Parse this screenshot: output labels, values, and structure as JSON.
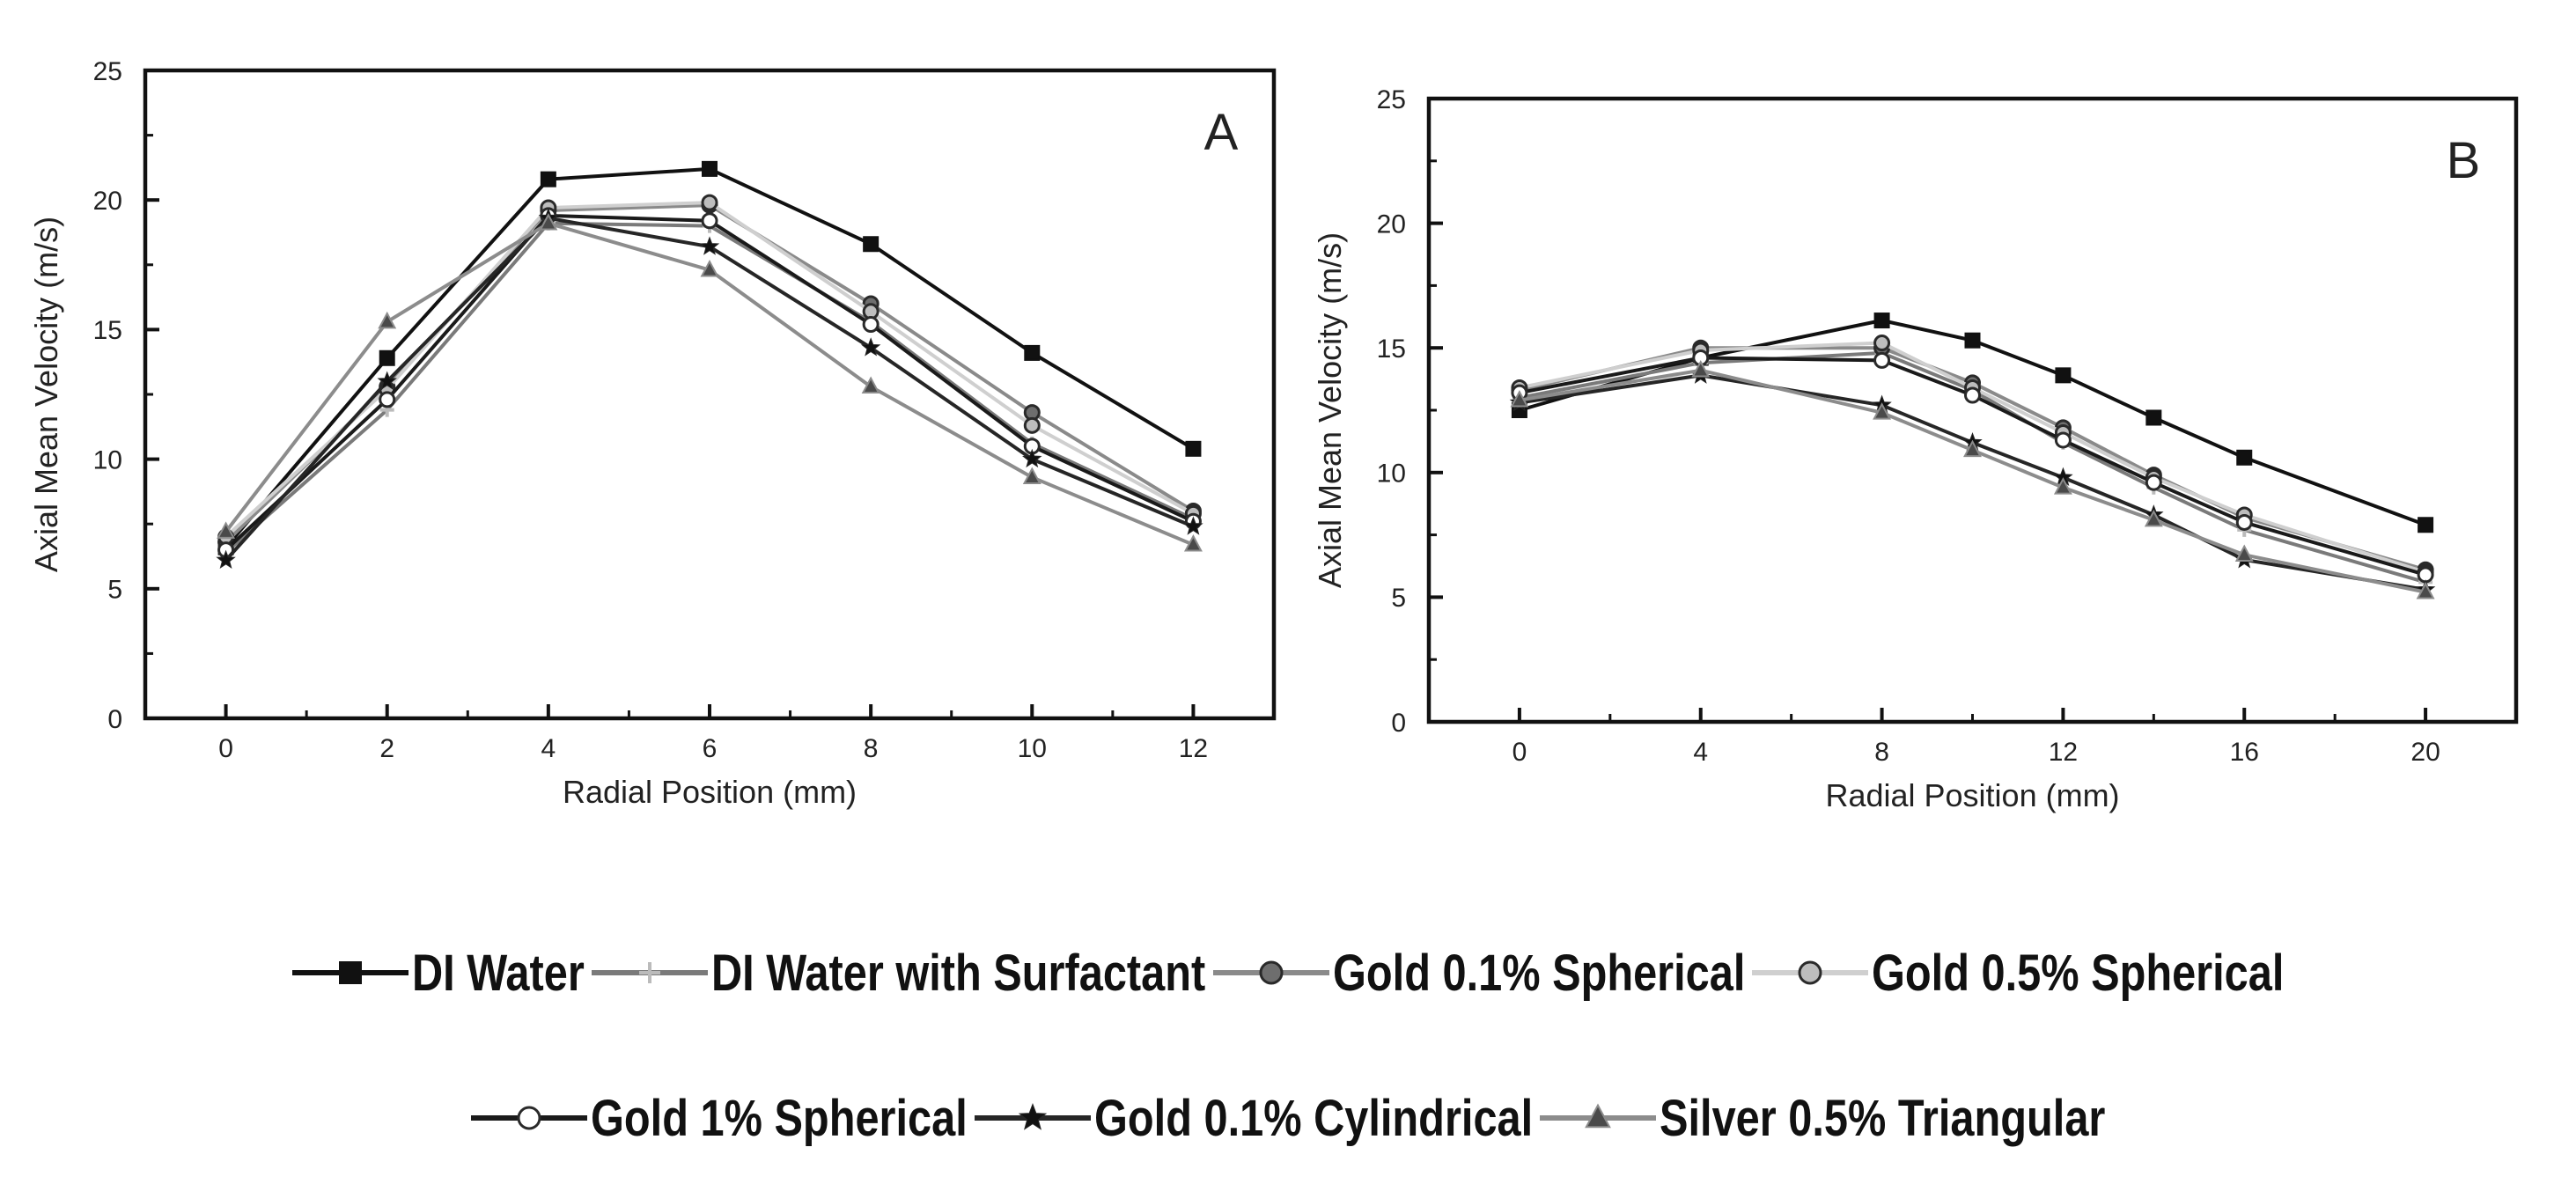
{
  "chart_data": [
    {
      "type": "line",
      "panel_label": "A",
      "xlabel": "Radial Position (mm)",
      "ylabel": "Axial Mean Velocity (m/s)",
      "xlim": [
        -1,
        13
      ],
      "ylim": [
        0,
        25
      ],
      "xticks": [
        0,
        2,
        4,
        6,
        8,
        10,
        12
      ],
      "yticks": [
        0,
        5,
        10,
        15,
        20,
        25
      ],
      "x": [
        0,
        2,
        4,
        6,
        8,
        10,
        12
      ],
      "series": [
        {
          "name": "DI Water",
          "values": [
            6.6,
            13.9,
            20.8,
            21.2,
            18.3,
            14.1,
            10.4
          ]
        },
        {
          "name": "DI Water with Surfactant",
          "values": [
            6.4,
            11.9,
            19.1,
            19.0,
            15.3,
            10.6,
            7.7
          ]
        },
        {
          "name": "Gold 0.1% Spherical",
          "values": [
            6.8,
            12.8,
            19.6,
            19.8,
            16.0,
            11.8,
            8.0
          ]
        },
        {
          "name": "Gold 0.5% Spherical",
          "values": [
            7.0,
            12.7,
            19.7,
            19.9,
            15.7,
            11.3,
            7.9
          ]
        },
        {
          "name": "Gold 1% Spherical",
          "values": [
            6.5,
            12.3,
            19.4,
            19.2,
            15.2,
            10.5,
            7.6
          ]
        },
        {
          "name": "Gold 0.1% Cylindrical",
          "values": [
            6.1,
            13.0,
            19.3,
            18.2,
            14.3,
            10.0,
            7.4
          ]
        },
        {
          "name": "Silver 0.5% Triangular",
          "values": [
            7.2,
            15.3,
            19.1,
            17.3,
            12.8,
            9.3,
            6.7
          ]
        }
      ]
    },
    {
      "type": "line",
      "panel_label": "B",
      "xlabel": "Radial Position (mm)",
      "ylabel": "Axial Mean Velocity (m/s)",
      "xlim": [
        -2,
        22
      ],
      "ylim": [
        0,
        25
      ],
      "xticks": [
        0,
        4,
        8,
        12,
        16,
        20
      ],
      "yticks": [
        0,
        5,
        10,
        15,
        20,
        25
      ],
      "x": [
        0,
        4,
        8,
        10,
        12,
        14,
        16,
        20
      ],
      "series": [
        {
          "name": "DI Water",
          "values": [
            12.5,
            14.6,
            16.1,
            15.3,
            13.9,
            12.2,
            10.6,
            7.9
          ]
        },
        {
          "name": "DI Water with Surfactant",
          "values": [
            13.0,
            14.4,
            14.8,
            13.3,
            11.2,
            9.4,
            7.7,
            5.6
          ]
        },
        {
          "name": "Gold 0.1% Spherical",
          "values": [
            13.3,
            15.0,
            15.0,
            13.6,
            11.8,
            9.9,
            8.2,
            6.1
          ]
        },
        {
          "name": "Gold 0.5% Spherical",
          "values": [
            13.4,
            14.9,
            15.2,
            13.4,
            11.6,
            9.8,
            8.3,
            6.0
          ]
        },
        {
          "name": "Gold 1% Spherical",
          "values": [
            13.2,
            14.6,
            14.5,
            13.1,
            11.3,
            9.6,
            8.0,
            5.9
          ]
        },
        {
          "name": "Gold 0.1% Cylindrical",
          "values": [
            12.8,
            13.9,
            12.7,
            11.2,
            9.8,
            8.3,
            6.5,
            5.3
          ]
        },
        {
          "name": "Silver 0.5% Triangular",
          "values": [
            12.9,
            14.1,
            12.4,
            10.9,
            9.4,
            8.1,
            6.7,
            5.2
          ]
        }
      ]
    }
  ],
  "series_styles": [
    {
      "name": "DI Water",
      "color": "#111111",
      "marker": "square",
      "fill": "#111111"
    },
    {
      "name": "DI Water with Surfactant",
      "color": "#7a7a7a",
      "marker": "cross",
      "fill": "#ffffff"
    },
    {
      "name": "Gold 0.1% Spherical",
      "color": "#8a8a8a",
      "marker": "circle",
      "fill": "#6e6e6e"
    },
    {
      "name": "Gold 0.5% Spherical",
      "color": "#cfcfcf",
      "marker": "circle",
      "fill": "#bdbdbd"
    },
    {
      "name": "Gold 1% Spherical",
      "color": "#1a1a1a",
      "marker": "circle",
      "fill": "#ffffff"
    },
    {
      "name": "Gold 0.1% Cylindrical",
      "color": "#262626",
      "marker": "star",
      "fill": "#111111"
    },
    {
      "name": "Silver 0.5% Triangular",
      "color": "#8c8c8c",
      "marker": "triangle",
      "fill": "#4a4a4a"
    }
  ],
  "legend": {
    "row1": [
      "DI Water",
      "DI Water with Surfactant",
      "Gold 0.1% Spherical",
      "Gold 0.5% Spherical"
    ],
    "row2": [
      "Gold 1% Spherical",
      "Gold 0.1% Cylindrical",
      "Silver 0.5% Triangular"
    ]
  }
}
